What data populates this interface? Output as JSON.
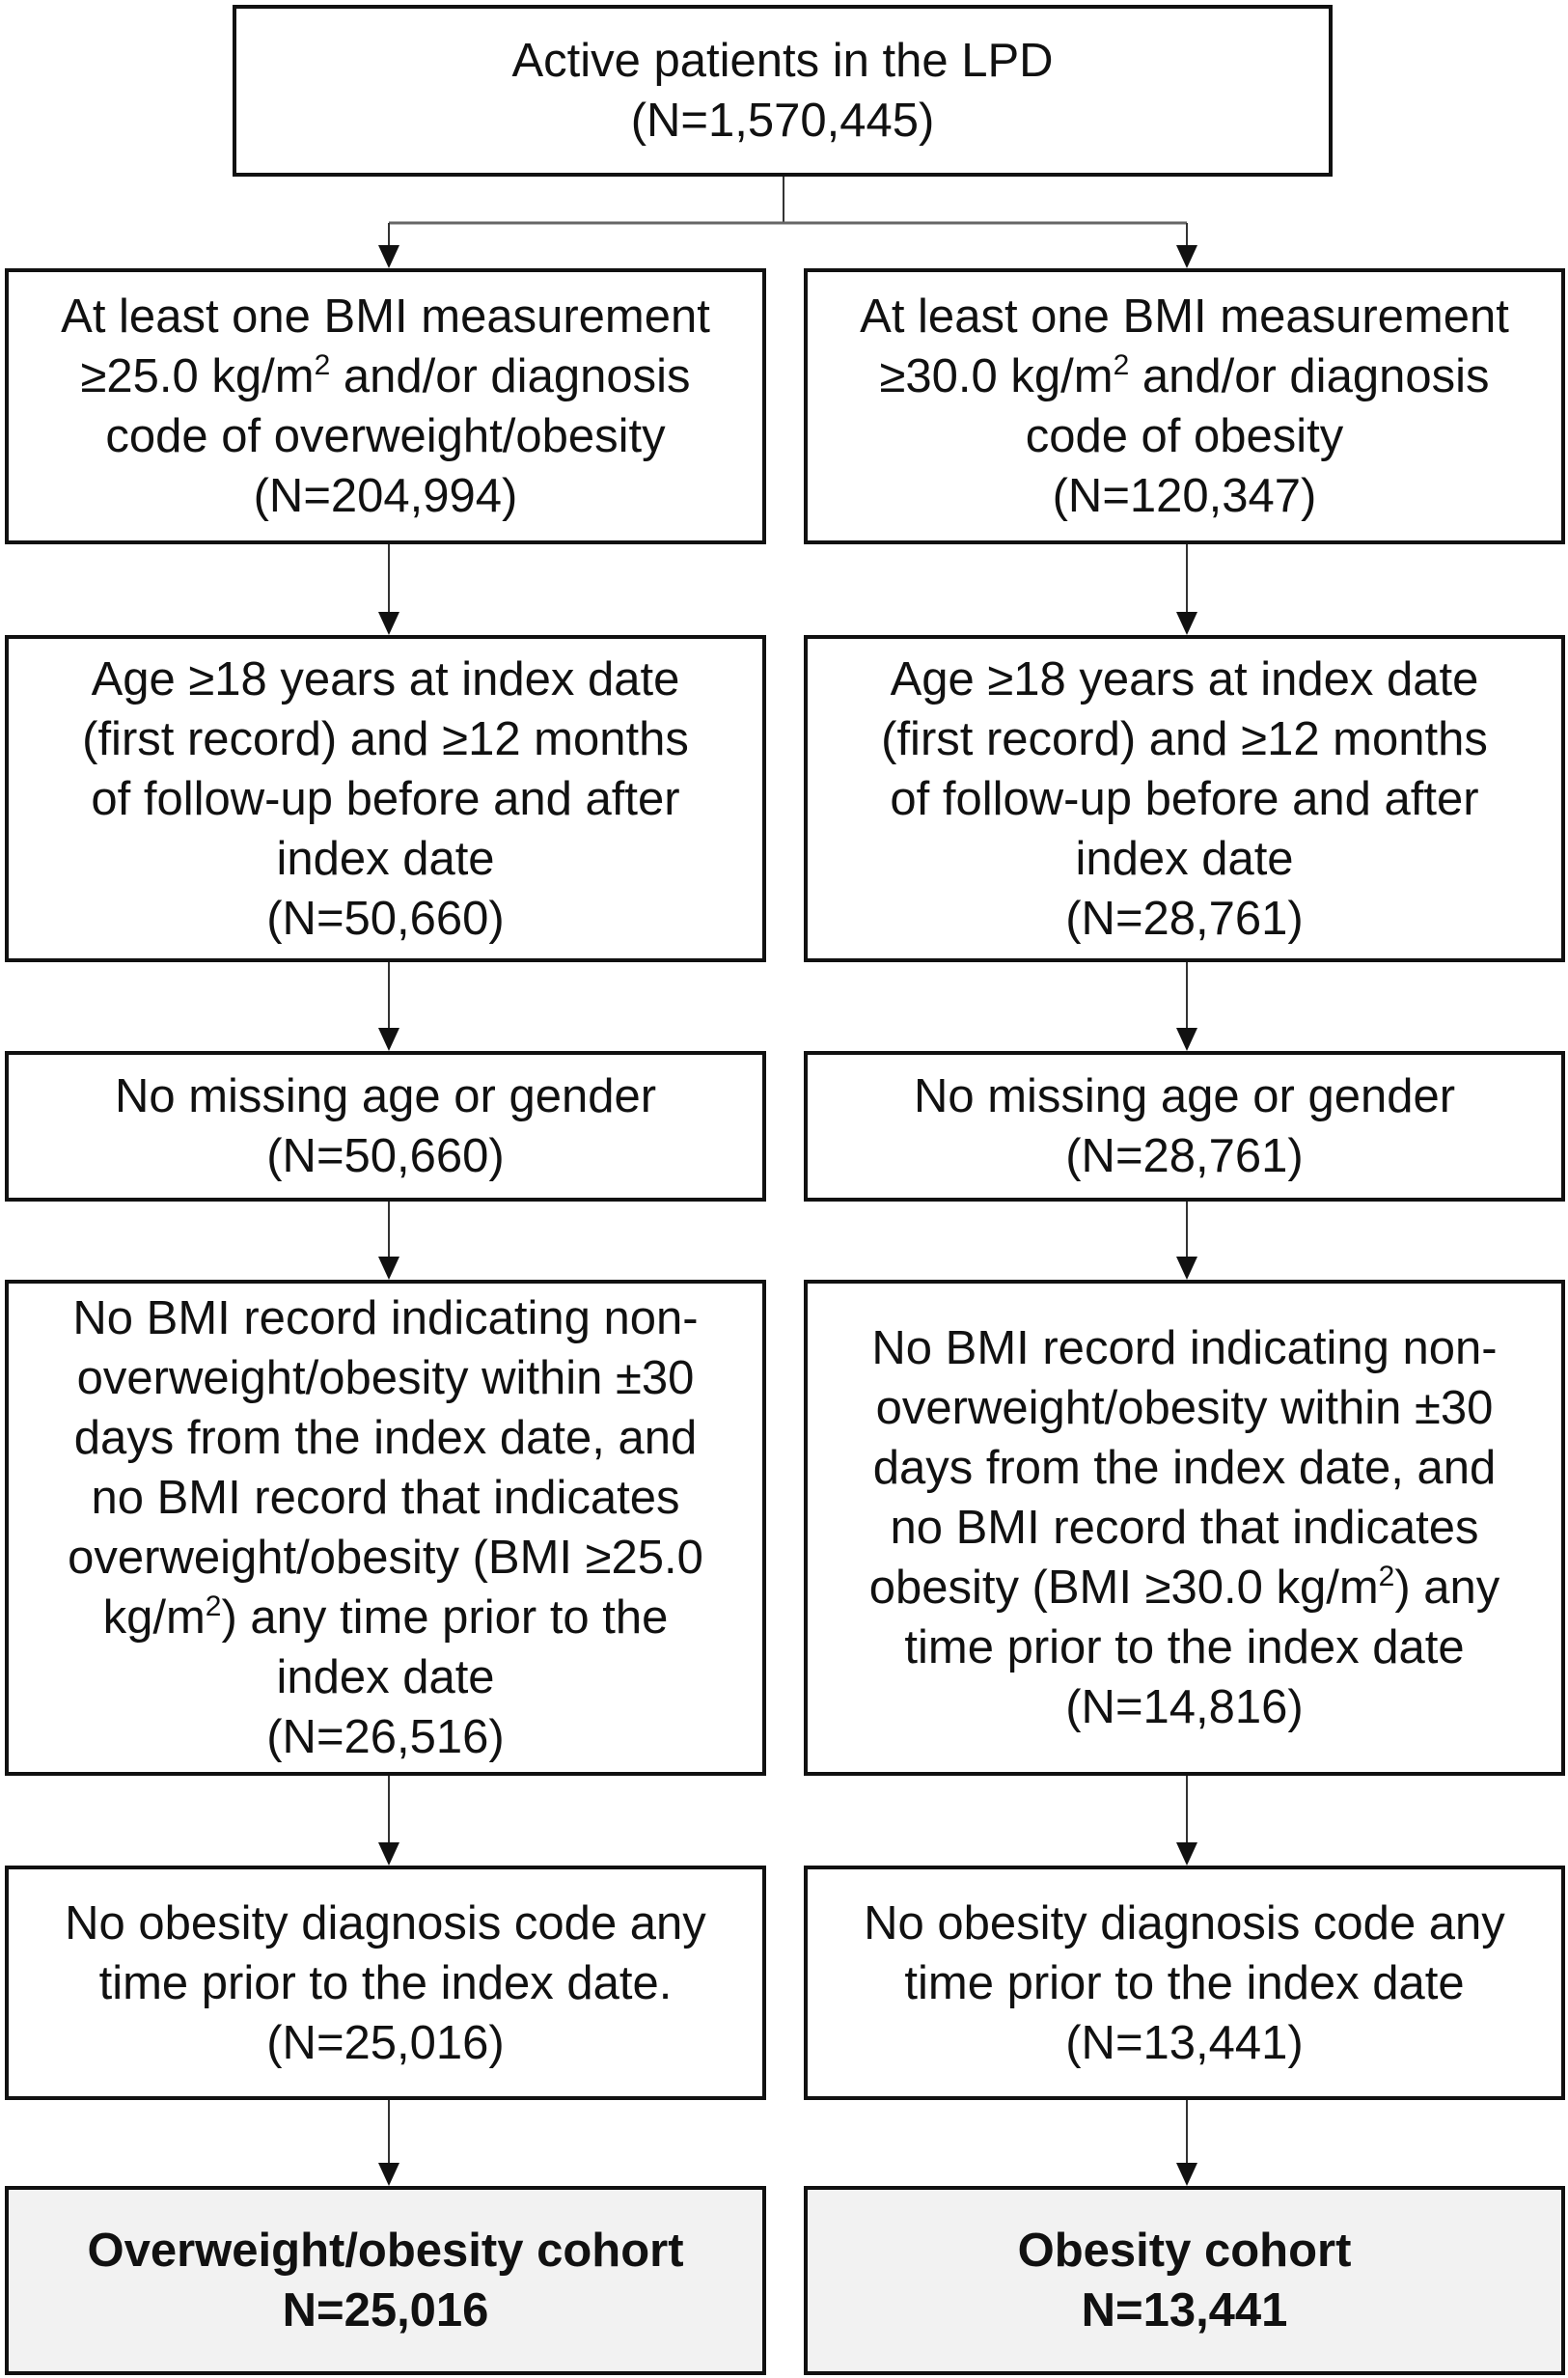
{
  "top": {
    "lines": [
      {
        "pre": "Active patients in the LPD"
      },
      {
        "pre": "(N=1,570,445)"
      }
    ]
  },
  "left": [
    {
      "lines": [
        {
          "pre": "At least one BMI measurement"
        },
        {
          "pre": "≥25.0 kg/m",
          "sup": "2",
          "post": " and/or diagnosis"
        },
        {
          "pre": "code of overweight/obesity"
        },
        {
          "pre": "(N=204,994)"
        }
      ]
    },
    {
      "lines": [
        {
          "pre": "Age ≥18 years at index date"
        },
        {
          "pre": "(first record) and ≥12 months"
        },
        {
          "pre": "of follow-up before and after"
        },
        {
          "pre": "index date"
        },
        {
          "pre": "(N=50,660)"
        }
      ]
    },
    {
      "lines": [
        {
          "pre": "No missing age or gender"
        },
        {
          "pre": "(N=50,660)"
        }
      ]
    },
    {
      "lines": [
        {
          "pre": "No BMI record indicating non-"
        },
        {
          "pre": "overweight/obesity within ±30"
        },
        {
          "pre": "days from the index date, and"
        },
        {
          "pre": "no BMI record that indicates"
        },
        {
          "pre": "overweight/obesity (BMI ≥25.0"
        },
        {
          "pre": "kg/m",
          "sup": "2",
          "post": ") any time prior to the"
        },
        {
          "pre": "index date"
        },
        {
          "pre": "(N=26,516)"
        }
      ]
    },
    {
      "lines": [
        {
          "pre": "No obesity diagnosis code any"
        },
        {
          "pre": "time prior to the index date."
        },
        {
          "pre": "(N=25,016)"
        }
      ]
    },
    {
      "final": true,
      "lines": [
        {
          "pre": "Overweight/obesity cohort"
        },
        {
          "pre": "N=25,016"
        }
      ]
    }
  ],
  "right": [
    {
      "lines": [
        {
          "pre": "At least one BMI measurement"
        },
        {
          "pre": "≥30.0 kg/m",
          "sup": "2",
          "post": " and/or diagnosis"
        },
        {
          "pre": "code of obesity"
        },
        {
          "pre": "(N=120,347)"
        }
      ]
    },
    {
      "lines": [
        {
          "pre": "Age ≥18 years at index date"
        },
        {
          "pre": "(first record) and ≥12 months"
        },
        {
          "pre": "of follow-up before and after"
        },
        {
          "pre": "index date"
        },
        {
          "pre": "(N=28,761)"
        }
      ]
    },
    {
      "lines": [
        {
          "pre": "No missing age or gender"
        },
        {
          "pre": "(N=28,761)"
        }
      ]
    },
    {
      "lines": [
        {
          "pre": "No BMI record indicating non-"
        },
        {
          "pre": "overweight/obesity within ±30"
        },
        {
          "pre": "days from the index date, and"
        },
        {
          "pre": "no BMI record that indicates"
        },
        {
          "pre": "obesity (BMI ≥30.0 kg/m",
          "sup": "2",
          "post": ") any"
        },
        {
          "pre": "time prior to the index date"
        },
        {
          "pre": "(N=14,816)"
        }
      ]
    },
    {
      "lines": [
        {
          "pre": "No obesity diagnosis code any"
        },
        {
          "pre": "time prior to the index date"
        },
        {
          "pre": "(N=13,441)"
        }
      ]
    },
    {
      "final": true,
      "lines": [
        {
          "pre": "Obesity cohort"
        },
        {
          "pre": "N=13,441"
        }
      ]
    }
  ],
  "colors": {
    "border": "#111111",
    "final_fill": "#f2f2f2"
  }
}
